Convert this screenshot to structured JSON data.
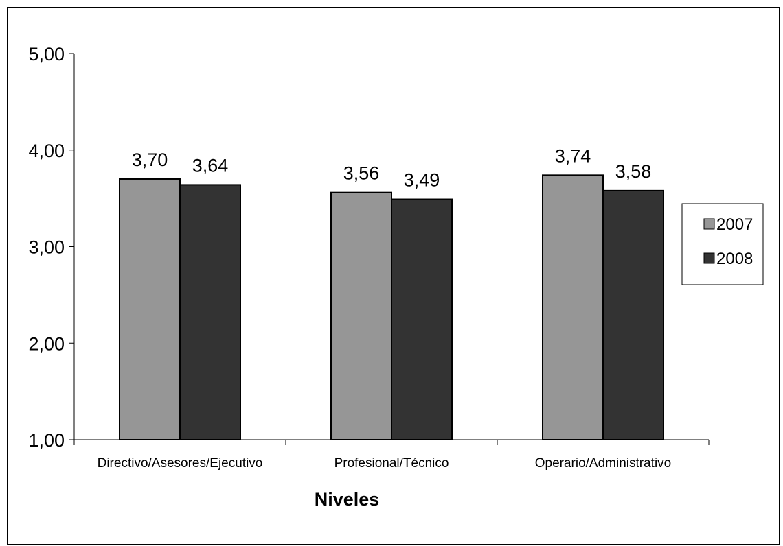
{
  "chart_data": {
    "type": "bar",
    "title": "",
    "xlabel": "Niveles",
    "ylabel": "",
    "ylim": [
      1.0,
      5.0
    ],
    "yticks": [
      "1,00",
      "2,00",
      "3,00",
      "4,00",
      "5,00"
    ],
    "ytick_values": [
      1,
      2,
      3,
      4,
      5
    ],
    "grid": false,
    "legend_position": "right",
    "categories": [
      "Directivo/Asesores/Ejecutivo",
      "Profesional/Técnico",
      "Operario/Administrativo"
    ],
    "series": [
      {
        "name": "2007",
        "values": [
          3.7,
          3.56,
          3.74
        ],
        "labels": [
          "3,70",
          "3,56",
          "3,74"
        ],
        "color": "#969696"
      },
      {
        "name": "2008",
        "values": [
          3.64,
          3.49,
          3.58
        ],
        "labels": [
          "3,64",
          "3,49",
          "3,58"
        ],
        "color": "#333333"
      }
    ]
  }
}
